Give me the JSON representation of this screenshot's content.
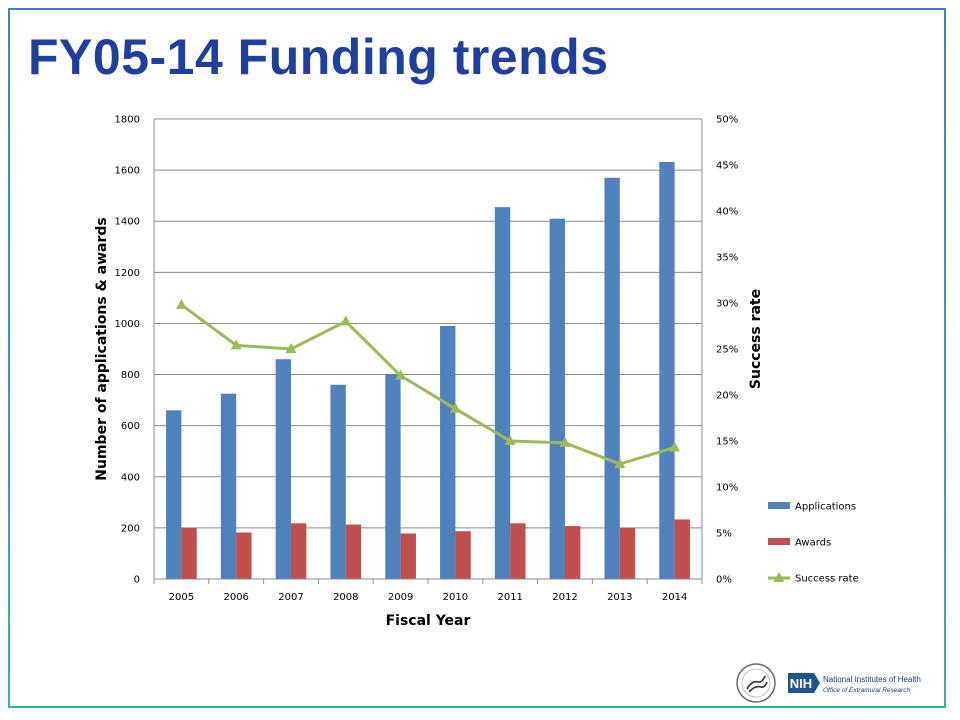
{
  "slide": {
    "title": "FY05-14 Funding trends"
  },
  "footer": {
    "org_name": "National Institutes of Health",
    "org_office": "Office of Extramural Research",
    "org_abbrev": "NIH"
  },
  "colors": {
    "applications": "#4f81bd",
    "awards": "#c0504d",
    "success_rate": "#9bbb59",
    "title": "#1f3f9f",
    "nih_blue": "#20558a"
  },
  "chart_data": {
    "type": "bar",
    "categories": [
      "2005",
      "2006",
      "2007",
      "2008",
      "2009",
      "2010",
      "2011",
      "2012",
      "2013",
      "2014"
    ],
    "series": [
      {
        "name": "Applications",
        "type": "bar",
        "axis": "left",
        "values": [
          660,
          725,
          860,
          760,
          800,
          990,
          1455,
          1410,
          1570,
          1632
        ]
      },
      {
        "name": "Awards",
        "type": "bar",
        "axis": "left",
        "values": [
          200,
          182,
          218,
          213,
          178,
          187,
          218,
          207,
          200,
          233
        ]
      },
      {
        "name": "Success rate",
        "type": "line",
        "axis": "right",
        "marker": "triangle",
        "values": [
          29.8,
          25.4,
          25.0,
          28.0,
          22.1,
          18.5,
          15.0,
          14.8,
          12.5,
          14.3
        ]
      }
    ],
    "xlabel": "Fiscal Year",
    "ylabel": "Number of applications & awards",
    "y2label": "Success rate",
    "ylim": [
      0,
      1800
    ],
    "yticks": [
      "0",
      "200",
      "400",
      "600",
      "800",
      "1000",
      "1200",
      "1400",
      "1600",
      "1800"
    ],
    "y2lim": [
      0,
      50
    ],
    "y2ticks": [
      "0%",
      "5%",
      "10%",
      "15%",
      "20%",
      "25%",
      "30%",
      "35%",
      "40%",
      "45%",
      "50%"
    ],
    "grid": true,
    "legend_position": "right"
  }
}
